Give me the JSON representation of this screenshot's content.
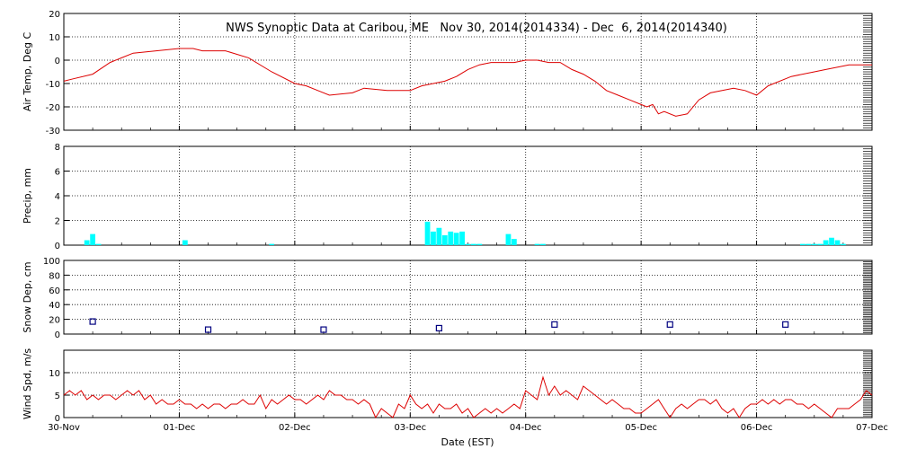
{
  "chart_data": {
    "title": "NWS Synoptic Data at Caribou, ME   Nov 30, 2014(2014334) - Dec  6, 2014(2014340)",
    "x_axis": {
      "label": "Date (EST)",
      "range_days": [
        0,
        7
      ],
      "tick_labels": [
        "30-Nov",
        "01-Dec",
        "02-Dec",
        "03-Dec",
        "04-Dec",
        "05-Dec",
        "06-Dec",
        "07-Dec"
      ],
      "grid": true
    },
    "colors": {
      "temp": "#dd0000",
      "precip": "#00ffff",
      "snow": "#000080",
      "wind": "#dd0000",
      "axes": "#000000"
    },
    "panels": [
      {
        "id": "air-temp",
        "type": "line",
        "ylabel": "Air Temp, Deg C",
        "ylim": [
          -30,
          20
        ],
        "yticks": [
          -30,
          -20,
          -10,
          0,
          10,
          20
        ],
        "grid": true,
        "series": [
          {
            "x": [
              0,
              0.08,
              0.25,
              0.4,
              0.5,
              0.6,
              0.8,
              1.0,
              1.12,
              1.2,
              1.3,
              1.4,
              1.6,
              1.8,
              2.0,
              2.1,
              2.2,
              2.3,
              2.5,
              2.6,
              2.8,
              3.0,
              3.1,
              3.2,
              3.3,
              3.4,
              3.5,
              3.6,
              3.7,
              3.8,
              3.9,
              4.0,
              4.1,
              4.2,
              4.3,
              4.4,
              4.5,
              4.6,
              4.7,
              4.8,
              4.9,
              5.0,
              5.05,
              5.1,
              5.15,
              5.2,
              5.3,
              5.4,
              5.5,
              5.6,
              5.8,
              5.9,
              6.0,
              6.1,
              6.3,
              6.5,
              6.6,
              6.8,
              7.0
            ],
            "y": [
              -9,
              -8,
              -6,
              -1,
              1,
              3,
              4,
              5,
              5,
              4,
              4,
              4,
              1,
              -5,
              -10,
              -11,
              -13,
              -15,
              -14,
              -12,
              -13,
              -13,
              -11,
              -10,
              -9,
              -7,
              -4,
              -2,
              -1,
              -1,
              -1,
              0,
              0,
              -1,
              -1,
              -4,
              -6,
              -9,
              -13,
              -15,
              -17,
              -19,
              -20,
              -19,
              -23,
              -22,
              -24,
              -23,
              -17,
              -14,
              -12,
              -13,
              -15,
              -11,
              -7,
              -5,
              -4,
              -2,
              -2
            ]
          }
        ]
      },
      {
        "id": "precip",
        "type": "bar",
        "ylabel": "Precip, mm",
        "ylim": [
          0,
          8
        ],
        "yticks": [
          0,
          2,
          4,
          6,
          8
        ],
        "grid": true,
        "x": [
          0.2,
          0.25,
          0.3,
          1.05,
          1.8,
          3.15,
          3.2,
          3.25,
          3.3,
          3.35,
          3.4,
          3.45,
          3.5,
          3.55,
          3.6,
          3.85,
          3.9,
          4.1,
          4.15,
          6.4,
          6.45,
          6.5,
          6.55,
          6.6,
          6.65,
          6.7,
          6.75
        ],
        "values": [
          0.4,
          0.9,
          0.1,
          0.4,
          0.1,
          1.9,
          1.1,
          1.4,
          0.8,
          1.1,
          1.0,
          1.1,
          0.1,
          0.1,
          0.1,
          0.9,
          0.5,
          0.1,
          0.1,
          0.1,
          0.1,
          0.1,
          0.1,
          0.4,
          0.6,
          0.4,
          0.1
        ]
      },
      {
        "id": "snow",
        "type": "scatter",
        "ylabel": "Snow Dep, cm",
        "ylim": [
          0,
          100
        ],
        "yticks": [
          0,
          20,
          40,
          60,
          80,
          100
        ],
        "grid": true,
        "x": [
          0.25,
          1.25,
          2.25,
          3.25,
          4.25,
          5.25,
          6.25
        ],
        "values": [
          17,
          6,
          6,
          8,
          13,
          13,
          13
        ]
      },
      {
        "id": "wind",
        "type": "line",
        "ylabel": "Wind Spd, m/s",
        "ylim": [
          0,
          15
        ],
        "yticks": [
          0,
          5,
          10
        ],
        "grid": true,
        "series": [
          {
            "x": [
              0,
              0.05,
              0.1,
              0.15,
              0.2,
              0.25,
              0.3,
              0.35,
              0.4,
              0.45,
              0.5,
              0.55,
              0.6,
              0.65,
              0.7,
              0.75,
              0.8,
              0.85,
              0.9,
              0.95,
              1.0,
              1.05,
              1.1,
              1.15,
              1.2,
              1.25,
              1.3,
              1.35,
              1.4,
              1.45,
              1.5,
              1.55,
              1.6,
              1.65,
              1.7,
              1.75,
              1.8,
              1.85,
              1.9,
              1.95,
              2.0,
              2.05,
              2.1,
              2.15,
              2.2,
              2.25,
              2.3,
              2.35,
              2.4,
              2.45,
              2.5,
              2.55,
              2.6,
              2.65,
              2.7,
              2.75,
              2.8,
              2.85,
              2.9,
              2.95,
              3.0,
              3.05,
              3.1,
              3.15,
              3.2,
              3.25,
              3.3,
              3.35,
              3.4,
              3.45,
              3.5,
              3.55,
              3.6,
              3.65,
              3.7,
              3.75,
              3.8,
              3.85,
              3.9,
              3.95,
              4.0,
              4.05,
              4.1,
              4.15,
              4.2,
              4.25,
              4.3,
              4.35,
              4.4,
              4.45,
              4.5,
              4.55,
              4.6,
              4.65,
              4.7,
              4.75,
              4.8,
              4.85,
              4.9,
              4.95,
              5.0,
              5.05,
              5.1,
              5.15,
              5.2,
              5.25,
              5.3,
              5.35,
              5.4,
              5.45,
              5.5,
              5.55,
              5.6,
              5.65,
              5.7,
              5.75,
              5.8,
              5.85,
              5.9,
              5.95,
              6.0,
              6.05,
              6.1,
              6.15,
              6.2,
              6.25,
              6.3,
              6.35,
              6.4,
              6.45,
              6.5,
              6.55,
              6.6,
              6.65,
              6.7,
              6.75,
              6.8,
              6.85,
              6.9,
              6.95,
              7.0
            ],
            "y": [
              5,
              6,
              5,
              6,
              4,
              5,
              4,
              5,
              5,
              4,
              5,
              6,
              5,
              6,
              4,
              5,
              3,
              4,
              3,
              3,
              4,
              3,
              3,
              2,
              3,
              2,
              3,
              3,
              2,
              3,
              3,
              4,
              3,
              3,
              5,
              2,
              4,
              3,
              4,
              5,
              4,
              4,
              3,
              4,
              5,
              4,
              6,
              5,
              5,
              4,
              4,
              3,
              4,
              3,
              0,
              2,
              1,
              0,
              3,
              2,
              5,
              3,
              2,
              3,
              1,
              3,
              2,
              2,
              3,
              1,
              2,
              0,
              1,
              2,
              1,
              2,
              1,
              2,
              3,
              2,
              6,
              5,
              4,
              9,
              5,
              7,
              5,
              6,
              5,
              4,
              7,
              6,
              5,
              4,
              3,
              4,
              3,
              2,
              2,
              1,
              1,
              2,
              3,
              4,
              2,
              0,
              2,
              3,
              2,
              3,
              4,
              4,
              3,
              4,
              2,
              1,
              2,
              0,
              2,
              3,
              3,
              4,
              3,
              4,
              3,
              4,
              4,
              3,
              3,
              2,
              3,
              2,
              1,
              0,
              2,
              2,
              2,
              3,
              4,
              6,
              5
            ]
          }
        ]
      }
    ]
  }
}
